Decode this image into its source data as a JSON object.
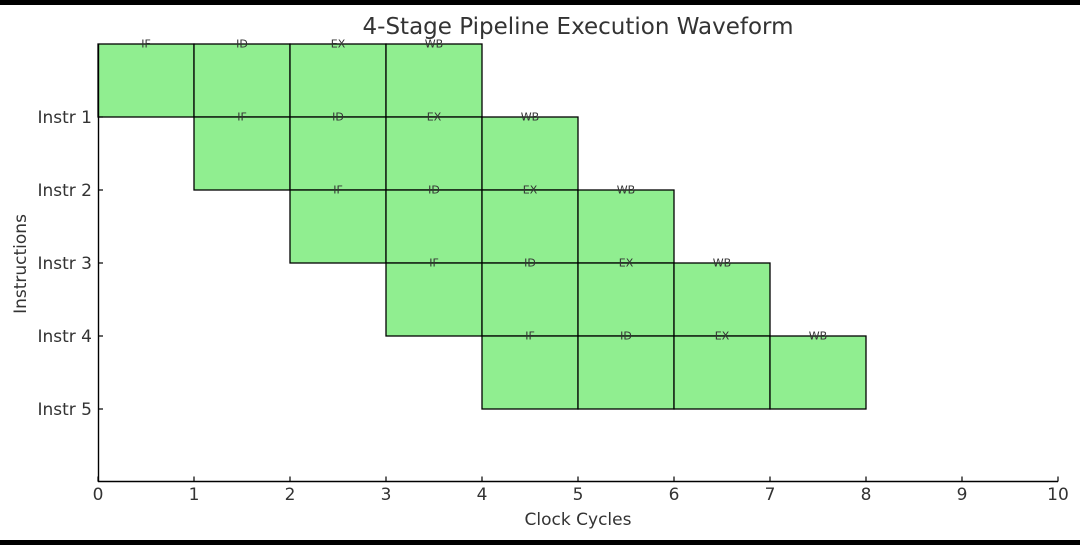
{
  "chart_data": {
    "type": "bar",
    "title": "4-Stage Pipeline Execution Waveform",
    "xlabel": "Clock Cycles",
    "ylabel": "Instructions",
    "xlim": [
      0,
      10
    ],
    "xticks": [
      "0",
      "1",
      "2",
      "3",
      "4",
      "5",
      "6",
      "7",
      "8",
      "9",
      "10"
    ],
    "categories": [
      "Instr 1",
      "Instr 2",
      "Instr 3",
      "Instr 4",
      "Instr 5"
    ],
    "grid": false,
    "bar_color": "#90EE90",
    "edge_color": "#000000",
    "rows": [
      {
        "instruction": "Instr 1",
        "stages": [
          {
            "stage": "IF",
            "start": 0,
            "end": 1
          },
          {
            "stage": "ID",
            "start": 1,
            "end": 2
          },
          {
            "stage": "EX",
            "start": 2,
            "end": 3
          },
          {
            "stage": "WB",
            "start": 3,
            "end": 4
          }
        ]
      },
      {
        "instruction": "Instr 2",
        "stages": [
          {
            "stage": "IF",
            "start": 1,
            "end": 2
          },
          {
            "stage": "ID",
            "start": 2,
            "end": 3
          },
          {
            "stage": "EX",
            "start": 3,
            "end": 4
          },
          {
            "stage": "WB",
            "start": 4,
            "end": 5
          }
        ]
      },
      {
        "instruction": "Instr 3",
        "stages": [
          {
            "stage": "IF",
            "start": 2,
            "end": 3
          },
          {
            "stage": "ID",
            "start": 3,
            "end": 4
          },
          {
            "stage": "EX",
            "start": 4,
            "end": 5
          },
          {
            "stage": "WB",
            "start": 5,
            "end": 6
          }
        ]
      },
      {
        "instruction": "Instr 4",
        "stages": [
          {
            "stage": "IF",
            "start": 3,
            "end": 4
          },
          {
            "stage": "ID",
            "start": 4,
            "end": 5
          },
          {
            "stage": "EX",
            "start": 5,
            "end": 6
          },
          {
            "stage": "WB",
            "start": 6,
            "end": 7
          }
        ]
      },
      {
        "instruction": "Instr 5",
        "stages": [
          {
            "stage": "IF",
            "start": 4,
            "end": 5
          },
          {
            "stage": "ID",
            "start": 5,
            "end": 6
          },
          {
            "stage": "EX",
            "start": 6,
            "end": 7
          },
          {
            "stage": "WB",
            "start": 7,
            "end": 8
          }
        ]
      }
    ]
  }
}
